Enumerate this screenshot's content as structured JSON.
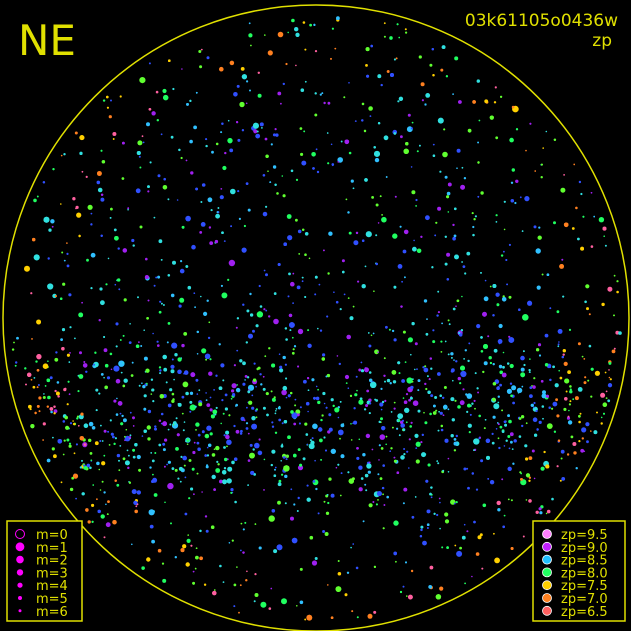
{
  "corner_label": "NE",
  "image_id": "03k61105o0436w",
  "mode": "zp",
  "magnitude_legend": [
    "m=0",
    "m=1",
    "m=2",
    "m=3",
    "m=4",
    "m=5",
    "m=6"
  ],
  "zp_legend": [
    {
      "label": "zp=9.5",
      "color": "#ff80ff"
    },
    {
      "label": "zp=9.0",
      "color": "#c020ff"
    },
    {
      "label": "zp=8.5",
      "color": "#20c0ff"
    },
    {
      "label": "zp=8.0",
      "color": "#20ff60"
    },
    {
      "label": "zp=7.5",
      "color": "#ffd000"
    },
    {
      "label": "zp=7.0",
      "color": "#ff8020"
    },
    {
      "label": "zp=6.5",
      "color": "#ff6060"
    }
  ]
}
